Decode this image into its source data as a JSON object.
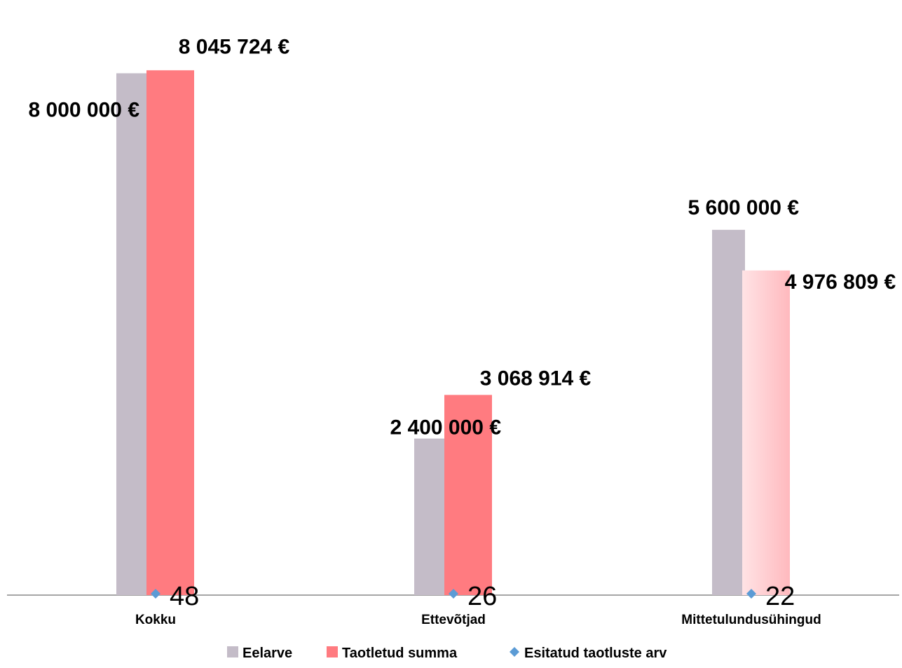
{
  "chart_data": {
    "type": "bar",
    "categories": [
      "Kokku",
      "Ettevõtjad",
      "Mittetulundusühingud"
    ],
    "series": [
      {
        "name": "Eelarve",
        "kind": "bar",
        "color": "#c4bcc8",
        "values": [
          8000000,
          2400000,
          5600000
        ],
        "labels": [
          "8 000 000 €",
          "2 400 000 €",
          "5 600 000 €"
        ]
      },
      {
        "name": "Taotletud summa",
        "kind": "bar",
        "color": "#ff7b80",
        "values": [
          8045724,
          3068914,
          4976809
        ],
        "labels": [
          "8 045 724 €",
          "3 068 914 €",
          "4 976 809 €"
        ]
      },
      {
        "name": "Esitatud taotluste arv",
        "kind": "marker",
        "color": "#5b9bd5",
        "values": [
          48,
          26,
          22
        ],
        "labels": [
          "48",
          "26",
          "22"
        ]
      }
    ],
    "ylim": [
      0,
      8500000
    ],
    "grid": false,
    "legend": "bottom"
  }
}
